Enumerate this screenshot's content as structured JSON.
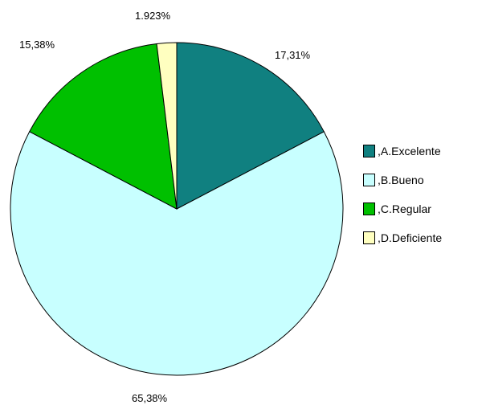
{
  "chart_data": {
    "type": "pie",
    "title": "",
    "slices": [
      {
        "label": ",A.Excelente",
        "value": 17.31,
        "display": "17,31%",
        "color": "#108080"
      },
      {
        "label": ",B.Bueno",
        "value": 65.38,
        "display": "65,38%",
        "color": "#c8ffff"
      },
      {
        "label": ",C.Regular",
        "value": 15.38,
        "display": "15,38%",
        "color": "#00c000"
      },
      {
        "label": ",D.Deficiente",
        "value": 1.923,
        "display": "1.923%",
        "color": "#ffffc0"
      }
    ],
    "legend_position": "right",
    "start_angle_deg": 0,
    "direction": "clockwise"
  }
}
